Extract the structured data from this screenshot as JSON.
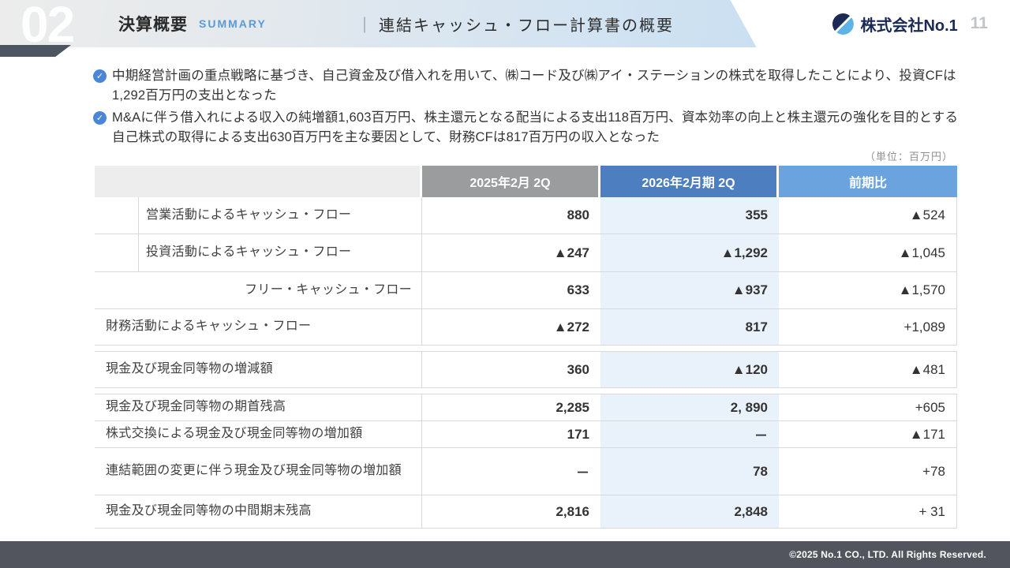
{
  "header": {
    "section_number": "02",
    "section_title": "決算概要",
    "section_subtitle": "SUMMARY",
    "separator": "｜",
    "page_title": "連結キャッシュ・フロー計算書の概要",
    "company_name": "株式会社No.1",
    "page_number": "11"
  },
  "bullets": [
    "中期経営計画の重点戦略に基づき、自己資金及び借入れを用いて、㈱コード及び㈱アイ・ステーションの株式を取得したことにより、投資CFは1,292百万円の支出となった",
    "M&Aに伴う借入れによる収入の純増額1,603百万円、株主還元となる配当による支出118百万円、資本効率の向上と株主還元の強化を目的とする自己株式の取得による支出630百万円を主な要因として、財務CFは817百万円の収入となった"
  ],
  "unit_note": "（単位：百万円）",
  "table": {
    "columns": [
      "",
      "2025年2月 2Q",
      "2026年2月期 2Q",
      "前期比"
    ],
    "rows": [
      {
        "label": "営業活動によるキャッシュ・フロー",
        "values": [
          "880",
          "355",
          "▲524"
        ]
      },
      {
        "label": "投資活動によるキャッシュ・フロー",
        "values": [
          "▲247",
          "▲1,292",
          "▲1,045"
        ]
      },
      {
        "label": "フリー・キャッシュ・フロー",
        "values": [
          "633",
          "▲937",
          "▲1,570"
        ]
      },
      {
        "label": "財務活動によるキャッシュ・フロー",
        "values": [
          "▲272",
          "817",
          "+1,089"
        ]
      },
      {
        "label": "現金及び現金同等物の増減額",
        "values": [
          "360",
          "▲120",
          "▲481"
        ]
      },
      {
        "label": "現金及び現金同等物の期首残高",
        "values": [
          "2,285",
          "2, 890",
          "+605"
        ]
      },
      {
        "label": "株式交換による現金及び現金同等物の増加額",
        "values": [
          "171",
          "－",
          "▲171"
        ]
      },
      {
        "label": "連結範囲の変更に伴う現金及び現金同等物の増加額",
        "values": [
          "－",
          "78",
          "+78"
        ]
      },
      {
        "label": "現金及び現金同等物の中間期末残高",
        "values": [
          "2,816",
          "2,848",
          "+ 31"
        ]
      }
    ]
  },
  "footer": {
    "copyright": "©2025 No.1 CO., LTD. All Rights Reserved."
  },
  "colors": {
    "header_gradient_start": "#ececec",
    "header_gradient_end": "#bdd9ee",
    "summary_blue": "#5b9bd5",
    "check_icon_blue": "#4a86d8",
    "col_2025_header": "#9a9c9e",
    "col_2026_header": "#4d7fc0",
    "col_prev_header": "#6aa3de",
    "col_2026_body_bg": "#e9f2fb",
    "table_border": "#d9d9d9",
    "footer_bg": "#53555e",
    "logo_navy": "#1b2a55",
    "logo_lightblue": "#5fb4e6"
  }
}
